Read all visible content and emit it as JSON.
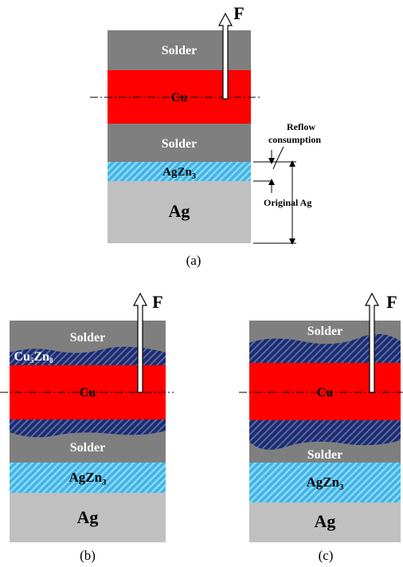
{
  "panel_a": {
    "force": "F",
    "solder_top": "Solder",
    "cu": "Cu",
    "solder_bottom": "Solder",
    "agzn3": {
      "base": "AgZn",
      "sub": "3"
    },
    "ag": "Ag",
    "reflow_consumption": [
      "Reflow",
      "consumption"
    ],
    "original_ag": "Original Ag",
    "caption": "(a)"
  },
  "panel_b": {
    "force": "F",
    "solder_top": "Solder",
    "cu5zn8": {
      "base1": "Cu",
      "sub1": "5",
      "base2": "Zn",
      "sub2": "8"
    },
    "cu": "Cu",
    "solder_bottom": "Solder",
    "agzn3": {
      "base": "AgZn",
      "sub": "3"
    },
    "ag": "Ag",
    "caption": "(b)"
  },
  "panel_c": {
    "force": "F",
    "solder_top": "Solder",
    "cu": "Cu",
    "solder_bottom": "Solder",
    "agzn3": {
      "base": "AgZn",
      "sub": "3"
    },
    "ag": "Ag",
    "caption": "(c)"
  }
}
